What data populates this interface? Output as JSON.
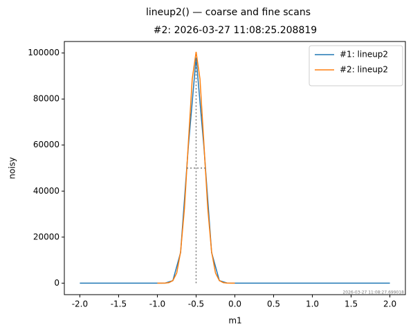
{
  "chart_data": {
    "type": "line",
    "suptitle": "lineup2() — coarse and fine scans",
    "title": "#2: 2026-03-27 11:08:25.208819",
    "xlabel": "m1",
    "ylabel": "noisy",
    "footnote": "2026-03-27 11:08:27.699018",
    "legend": "upper right",
    "xlim": [
      -2.2,
      2.2
    ],
    "ylim": [
      -5000,
      105000
    ],
    "xticks": [
      {
        "value": -2,
        "label": "-2.0"
      },
      {
        "value": -1.5,
        "label": "-1.5"
      },
      {
        "value": -1,
        "label": "-1.0"
      },
      {
        "value": -0.5,
        "label": "-0.5"
      },
      {
        "value": 0,
        "label": "0.0"
      },
      {
        "value": 0.5,
        "label": "0.5"
      },
      {
        "value": 1,
        "label": "1.0"
      },
      {
        "value": 1.5,
        "label": "1.5"
      },
      {
        "value": 2,
        "label": "2.0"
      }
    ],
    "yticks": [
      0,
      20000,
      40000,
      60000,
      80000,
      100000
    ],
    "series": [
      {
        "name": "#1: lineup2",
        "color": "#1f77b4",
        "x": [
          -2,
          -1.9,
          -1.8,
          -1.7,
          -1.6,
          -1.5,
          -1.4,
          -1.3,
          -1.2,
          -1.1,
          -1,
          -0.9,
          -0.8,
          -0.7,
          -0.6,
          -0.5,
          -0.4,
          -0.3,
          -0.2,
          -0.1,
          0,
          0.1,
          0.2,
          0.3,
          0.4,
          0.5,
          0.6,
          0.7,
          0.8,
          0.9,
          1,
          1.1,
          1.2,
          1.3,
          1.4,
          1.5,
          1.6,
          1.7,
          1.8,
          1.9,
          2
        ],
        "values": [
          0,
          0,
          0,
          0,
          0,
          0,
          0,
          0,
          0,
          0,
          0,
          0,
          1090,
          13300,
          59500,
          98000,
          59500,
          13300,
          1090,
          33,
          0,
          0,
          0,
          0,
          0,
          0,
          0,
          0,
          0,
          0,
          0,
          0,
          0,
          0,
          0,
          0,
          0,
          0,
          0,
          0,
          0
        ]
      },
      {
        "name": "#2: lineup2",
        "color": "#ff7f0e",
        "x": [
          -1,
          -0.95,
          -0.9,
          -0.85,
          -0.8,
          -0.75,
          -0.7,
          -0.65,
          -0.6,
          -0.55,
          -0.5,
          -0.45,
          -0.4,
          -0.35,
          -0.3,
          -0.25,
          -0.2,
          -0.15,
          -0.1,
          -0.05,
          0
        ],
        "values": [
          0,
          4,
          34,
          220,
          1120,
          4420,
          13600,
          32600,
          61000,
          88700,
          100500,
          88700,
          61000,
          32600,
          13600,
          4420,
          1120,
          220,
          34,
          4,
          0
        ]
      }
    ],
    "markers": {
      "center_x": -0.5,
      "center_ymin": 0,
      "center_ymax": 97000,
      "half_max_y": 50000,
      "fwhm_xmin": -0.62,
      "fwhm_xmax": -0.38
    }
  }
}
